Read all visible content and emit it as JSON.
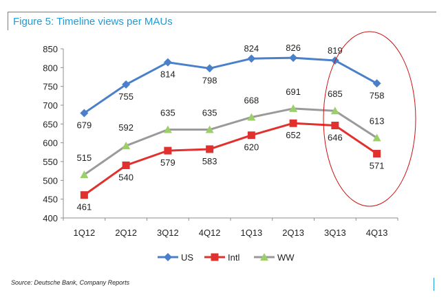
{
  "figure": {
    "title": "Figure 5: Timeline views per MAUs",
    "source": "Source: Deutsche Bank, Company Reports"
  },
  "chart_data": {
    "type": "line",
    "title": "Figure 5: Timeline views per MAUs",
    "xlabel": "",
    "ylabel": "",
    "categories": [
      "1Q12",
      "2Q12",
      "3Q12",
      "4Q12",
      "1Q13",
      "2Q13",
      "3Q13",
      "4Q13"
    ],
    "ylim": [
      400,
      850
    ],
    "yticks": [
      400,
      450,
      500,
      550,
      600,
      650,
      700,
      750,
      800,
      850
    ],
    "grid": false,
    "legend": "bottom",
    "series": [
      {
        "name": "US",
        "color": "#4a7fc9",
        "marker": "diamond",
        "values": [
          679,
          755,
          814,
          798,
          824,
          826,
          819,
          758
        ]
      },
      {
        "name": "Intl",
        "color": "#e0312e",
        "marker": "square",
        "values": [
          461,
          540,
          579,
          583,
          620,
          652,
          646,
          571
        ]
      },
      {
        "name": "WW",
        "color": "#9a9a9a",
        "marker": "triangle",
        "marker_color": "#9ccf6a",
        "values": [
          515,
          592,
          635,
          635,
          668,
          691,
          685,
          613
        ]
      }
    ],
    "annotation": {
      "type": "ellipse",
      "color": "#cc1111",
      "highlight_categories": [
        "3Q13",
        "4Q13"
      ]
    }
  }
}
